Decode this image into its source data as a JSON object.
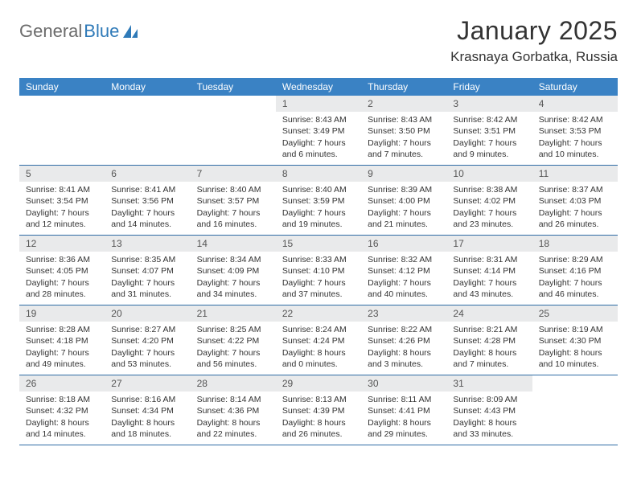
{
  "logo": {
    "text_a": "General",
    "text_b": "Blue"
  },
  "title": "January 2025",
  "subtitle": "Krasnaya Gorbatka, Russia",
  "colors": {
    "header_bg": "#3a82c4",
    "header_text": "#ffffff",
    "daynum_bg": "#e9eaeb",
    "week_border": "#2f6ca5",
    "text": "#333333",
    "logo_gray": "#6b6b6b",
    "logo_blue": "#2f7ab8"
  },
  "day_labels": [
    "Sunday",
    "Monday",
    "Tuesday",
    "Wednesday",
    "Thursday",
    "Friday",
    "Saturday"
  ],
  "blanks_before": 3,
  "days": [
    {
      "n": "1",
      "sr": "8:43 AM",
      "ss": "3:49 PM",
      "dl": "7 hours and 6 minutes."
    },
    {
      "n": "2",
      "sr": "8:43 AM",
      "ss": "3:50 PM",
      "dl": "7 hours and 7 minutes."
    },
    {
      "n": "3",
      "sr": "8:42 AM",
      "ss": "3:51 PM",
      "dl": "7 hours and 9 minutes."
    },
    {
      "n": "4",
      "sr": "8:42 AM",
      "ss": "3:53 PM",
      "dl": "7 hours and 10 minutes."
    },
    {
      "n": "5",
      "sr": "8:41 AM",
      "ss": "3:54 PM",
      "dl": "7 hours and 12 minutes."
    },
    {
      "n": "6",
      "sr": "8:41 AM",
      "ss": "3:56 PM",
      "dl": "7 hours and 14 minutes."
    },
    {
      "n": "7",
      "sr": "8:40 AM",
      "ss": "3:57 PM",
      "dl": "7 hours and 16 minutes."
    },
    {
      "n": "8",
      "sr": "8:40 AM",
      "ss": "3:59 PM",
      "dl": "7 hours and 19 minutes."
    },
    {
      "n": "9",
      "sr": "8:39 AM",
      "ss": "4:00 PM",
      "dl": "7 hours and 21 minutes."
    },
    {
      "n": "10",
      "sr": "8:38 AM",
      "ss": "4:02 PM",
      "dl": "7 hours and 23 minutes."
    },
    {
      "n": "11",
      "sr": "8:37 AM",
      "ss": "4:03 PM",
      "dl": "7 hours and 26 minutes."
    },
    {
      "n": "12",
      "sr": "8:36 AM",
      "ss": "4:05 PM",
      "dl": "7 hours and 28 minutes."
    },
    {
      "n": "13",
      "sr": "8:35 AM",
      "ss": "4:07 PM",
      "dl": "7 hours and 31 minutes."
    },
    {
      "n": "14",
      "sr": "8:34 AM",
      "ss": "4:09 PM",
      "dl": "7 hours and 34 minutes."
    },
    {
      "n": "15",
      "sr": "8:33 AM",
      "ss": "4:10 PM",
      "dl": "7 hours and 37 minutes."
    },
    {
      "n": "16",
      "sr": "8:32 AM",
      "ss": "4:12 PM",
      "dl": "7 hours and 40 minutes."
    },
    {
      "n": "17",
      "sr": "8:31 AM",
      "ss": "4:14 PM",
      "dl": "7 hours and 43 minutes."
    },
    {
      "n": "18",
      "sr": "8:29 AM",
      "ss": "4:16 PM",
      "dl": "7 hours and 46 minutes."
    },
    {
      "n": "19",
      "sr": "8:28 AM",
      "ss": "4:18 PM",
      "dl": "7 hours and 49 minutes."
    },
    {
      "n": "20",
      "sr": "8:27 AM",
      "ss": "4:20 PM",
      "dl": "7 hours and 53 minutes."
    },
    {
      "n": "21",
      "sr": "8:25 AM",
      "ss": "4:22 PM",
      "dl": "7 hours and 56 minutes."
    },
    {
      "n": "22",
      "sr": "8:24 AM",
      "ss": "4:24 PM",
      "dl": "8 hours and 0 minutes."
    },
    {
      "n": "23",
      "sr": "8:22 AM",
      "ss": "4:26 PM",
      "dl": "8 hours and 3 minutes."
    },
    {
      "n": "24",
      "sr": "8:21 AM",
      "ss": "4:28 PM",
      "dl": "8 hours and 7 minutes."
    },
    {
      "n": "25",
      "sr": "8:19 AM",
      "ss": "4:30 PM",
      "dl": "8 hours and 10 minutes."
    },
    {
      "n": "26",
      "sr": "8:18 AM",
      "ss": "4:32 PM",
      "dl": "8 hours and 14 minutes."
    },
    {
      "n": "27",
      "sr": "8:16 AM",
      "ss": "4:34 PM",
      "dl": "8 hours and 18 minutes."
    },
    {
      "n": "28",
      "sr": "8:14 AM",
      "ss": "4:36 PM",
      "dl": "8 hours and 22 minutes."
    },
    {
      "n": "29",
      "sr": "8:13 AM",
      "ss": "4:39 PM",
      "dl": "8 hours and 26 minutes."
    },
    {
      "n": "30",
      "sr": "8:11 AM",
      "ss": "4:41 PM",
      "dl": "8 hours and 29 minutes."
    },
    {
      "n": "31",
      "sr": "8:09 AM",
      "ss": "4:43 PM",
      "dl": "8 hours and 33 minutes."
    }
  ],
  "labels": {
    "sunrise": "Sunrise: ",
    "sunset": "Sunset: ",
    "daylight": "Daylight: "
  }
}
